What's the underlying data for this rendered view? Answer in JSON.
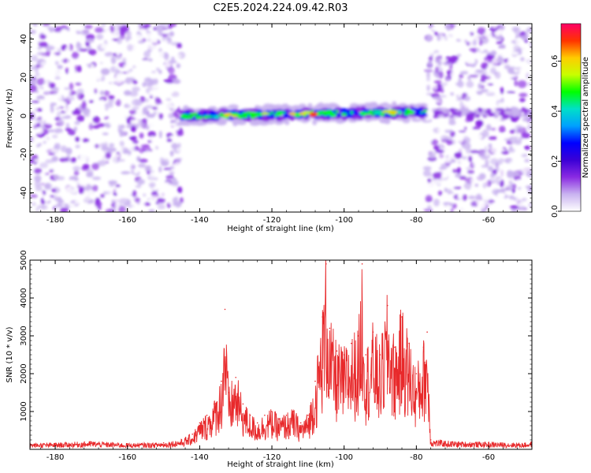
{
  "figure": {
    "title": "C2E5.2024.224.09.42.R03"
  },
  "chart_data": [
    {
      "type": "heatmap",
      "title": "C2E5.2024.224.09.42.R03",
      "xlabel": "Height of straight line (km)",
      "ylabel": "Frequency (Hz)",
      "xlim": [
        -187,
        -48
      ],
      "ylim": [
        -50,
        48
      ],
      "xticks": [
        -180,
        -160,
        -140,
        -120,
        -100,
        -80,
        -60
      ],
      "yticks": [
        -40,
        -20,
        0,
        20,
        40
      ],
      "colorbar": {
        "label": "Normalized spectral amplitude",
        "range": [
          0.0,
          0.75
        ],
        "ticks": [
          0.0,
          0.2,
          0.4,
          0.6
        ],
        "colors": [
          "#ffffff",
          "#c9b3f0",
          "#8a2be2",
          "#3b00d6",
          "#0000ff",
          "#00a0ff",
          "#00e0c8",
          "#00ff00",
          "#c8ff00",
          "#ffcc00",
          "#ff3300",
          "#ff0066"
        ]
      },
      "regions": [
        {
          "x_range": [
            -187,
            -145
          ],
          "description": "noise",
          "level": 0.1
        },
        {
          "x_range": [
            -145,
            -77
          ],
          "description": "signal band near 0 Hz",
          "freq_center": 0,
          "peak_level": 0.7
        },
        {
          "x_range": [
            -77,
            -48
          ],
          "description": "noise",
          "level": 0.1
        }
      ],
      "grid": false
    },
    {
      "type": "line",
      "xlabel": "Height of straight line (km)",
      "ylabel": "SNR (10 * v/v)",
      "xlim": [
        -187,
        -48
      ],
      "ylim": [
        0,
        5000
      ],
      "xticks": [
        -180,
        -160,
        -140,
        -120,
        -100,
        -80,
        -60
      ],
      "yticks": [
        1000,
        2000,
        3000,
        4000,
        5000
      ],
      "series": [
        {
          "color": "#e8292b",
          "x": [
            -187,
            -180,
            -170,
            -160,
            -150,
            -145,
            -142,
            -140,
            -138,
            -136,
            -134,
            -133,
            -132,
            -130,
            -128,
            -126,
            -124,
            -122,
            -120,
            -118,
            -116,
            -114,
            -112,
            -110,
            -108,
            -106,
            -105,
            -104,
            -102,
            -100,
            -98,
            -96,
            -95,
            -94,
            -92,
            -90,
            -88,
            -86,
            -84,
            -82,
            -80,
            -78,
            -77,
            -76,
            -70,
            -60,
            -50,
            -48
          ],
          "values": [
            150,
            160,
            200,
            150,
            170,
            250,
            400,
            700,
            900,
            1200,
            1800,
            3700,
            1500,
            1900,
            1200,
            900,
            700,
            900,
            1000,
            800,
            900,
            1000,
            700,
            900,
            1800,
            3500,
            4900,
            3200,
            2600,
            2500,
            2800,
            3000,
            4900,
            2500,
            3100,
            2500,
            3800,
            2700,
            3500,
            2800,
            2000,
            2700,
            3100,
            250,
            200,
            180,
            160,
            200
          ]
        }
      ],
      "grid": false
    }
  ]
}
